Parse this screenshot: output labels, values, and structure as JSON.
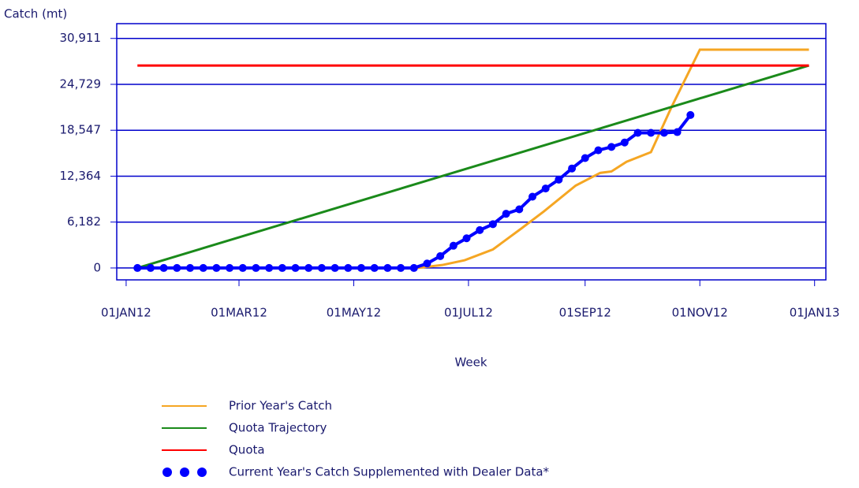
{
  "chart_data": {
    "type": "line",
    "y_label": "Catch (mt)",
    "x_label": "Week",
    "xlim": [
      "2011-12-27",
      "2013-01-07"
    ],
    "xticks": [
      {
        "value": "2012-01-01",
        "label": "01JAN12"
      },
      {
        "value": "2012-03-01",
        "label": "01MAR12"
      },
      {
        "value": "2012-05-01",
        "label": "01MAY12"
      },
      {
        "value": "2012-07-01",
        "label": "01JUL12"
      },
      {
        "value": "2012-09-01",
        "label": "01SEP12"
      },
      {
        "value": "2012-11-01",
        "label": "01NOV12"
      },
      {
        "value": "2013-01-01",
        "label": "01JAN13"
      }
    ],
    "ylim": [
      -1600,
      32900
    ],
    "yticks": [
      0,
      {
        "value": 6182,
        "label": "6,182"
      },
      {
        "value": 12364,
        "label": "12,364"
      },
      {
        "value": 18547,
        "label": "18,547"
      },
      {
        "value": 24729,
        "label": "24,729"
      },
      {
        "value": 30911,
        "label": "30,911"
      }
    ],
    "grid": true,
    "legend": "bottom",
    "series": [
      {
        "name": "Prior Year's Catch",
        "color": "#f5a623",
        "markers": false,
        "x": [
          "2012-06-04",
          "2012-06-17",
          "2012-06-29",
          "2012-07-14",
          "2012-07-29",
          "2012-08-10",
          "2012-08-27",
          "2012-09-09",
          "2012-09-15",
          "2012-09-23",
          "2012-10-06",
          "2012-10-17",
          "2012-11-01",
          "2012-12-29"
        ],
        "values": [
          0,
          400,
          1050,
          2500,
          5300,
          7600,
          11100,
          12800,
          13000,
          14300,
          15600,
          21700,
          29400,
          29400
        ]
      },
      {
        "name": "Quota Trajectory",
        "color": "#1a8a1a",
        "markers": false,
        "x": [
          "2012-01-07",
          "2012-12-29"
        ],
        "values": [
          0,
          27264
        ]
      },
      {
        "name": "Quota",
        "color": "#ff0000",
        "markers": false,
        "x": [
          "2012-01-07",
          "2012-12-29"
        ],
        "values": [
          27264,
          27264
        ]
      },
      {
        "name": "Current Year's Catch Supplemented with Dealer Data*",
        "color": "#0000ff",
        "markers": true,
        "x": [
          "2012-01-07",
          "2012-01-14",
          "2012-01-21",
          "2012-01-28",
          "2012-02-04",
          "2012-02-11",
          "2012-02-18",
          "2012-02-25",
          "2012-03-03",
          "2012-03-10",
          "2012-03-17",
          "2012-03-24",
          "2012-03-31",
          "2012-04-07",
          "2012-04-14",
          "2012-04-21",
          "2012-04-28",
          "2012-05-05",
          "2012-05-12",
          "2012-05-19",
          "2012-05-26",
          "2012-06-02",
          "2012-06-09",
          "2012-06-16",
          "2012-06-23",
          "2012-06-30",
          "2012-07-07",
          "2012-07-14",
          "2012-07-21",
          "2012-07-28",
          "2012-08-04",
          "2012-08-11",
          "2012-08-18",
          "2012-08-25",
          "2012-09-01",
          "2012-09-08",
          "2012-09-15",
          "2012-09-22",
          "2012-09-29",
          "2012-10-06",
          "2012-10-13",
          "2012-10-20",
          "2012-10-27"
        ],
        "values": [
          0,
          0,
          0,
          0,
          0,
          0,
          0,
          0,
          0,
          0,
          0,
          0,
          0,
          0,
          0,
          0,
          0,
          0,
          0,
          0,
          0,
          0,
          600,
          1600,
          3000,
          4000,
          5100,
          5900,
          7300,
          7900,
          9600,
          10700,
          11900,
          13400,
          14800,
          15850,
          16300,
          16900,
          18200,
          18200,
          18200,
          18300,
          20600
        ]
      }
    ]
  }
}
